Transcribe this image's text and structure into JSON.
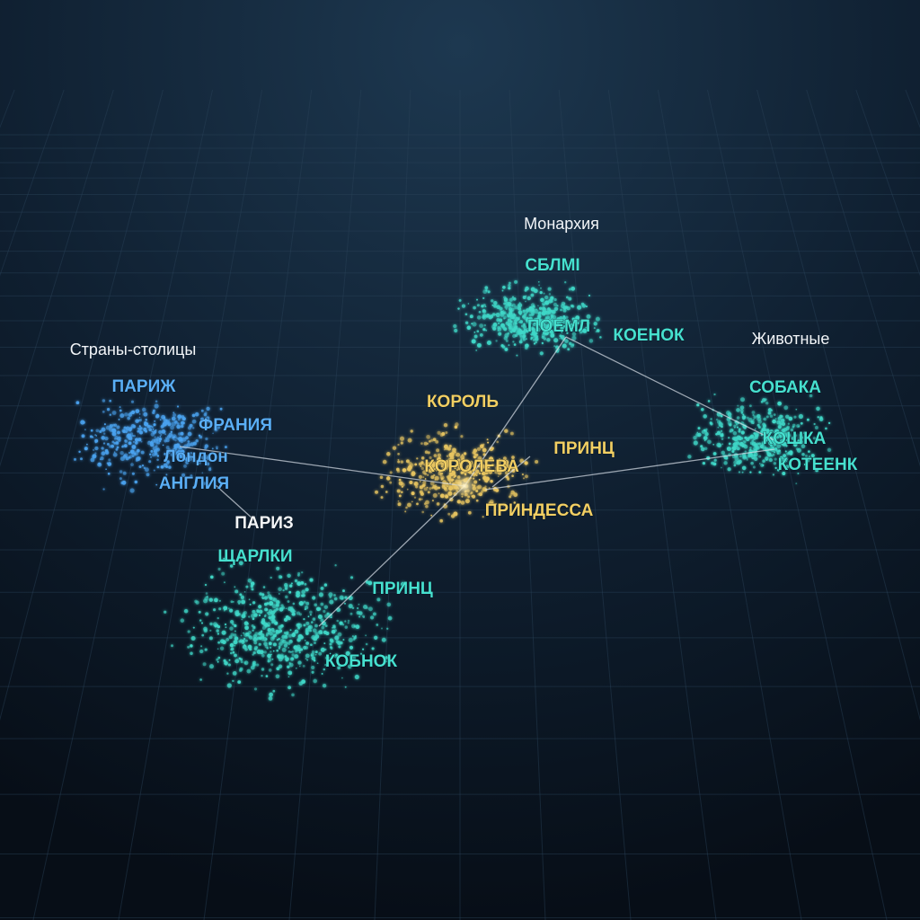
{
  "groups": [
    {
      "title": "Монархия",
      "words": [
        "СБЛМI",
        "ПОЕМЛ",
        "КОЕНОК"
      ]
    },
    {
      "title": "Страны-столицы",
      "words": [
        "ПАРИЖ",
        "ФРАНИЯ",
        "Лондон",
        "АНГЛИЯ",
        "ПАРИЗ"
      ]
    },
    {
      "words": [
        "КОРОЛЬ",
        "КОРОЛЕВА",
        "ПРИНЦ",
        "ПРИНДЕССА"
      ]
    },
    {
      "title": "Животные",
      "words": [
        "СОБАКА",
        "КОШКА",
        "КОТЕЕНК"
      ]
    },
    {
      "words": [
        "ЩАРЛКИ",
        "ПРИНЦ",
        "КОБНОК"
      ]
    }
  ]
}
